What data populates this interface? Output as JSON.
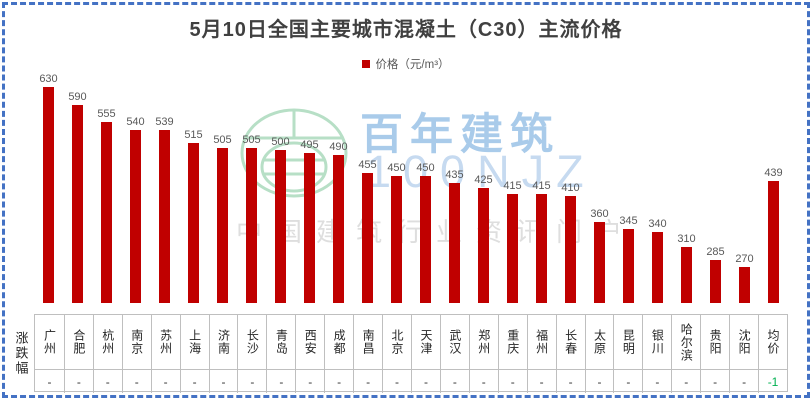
{
  "title": "5月10日全国主要城市混凝土（C30）主流价格",
  "legend": {
    "label": "价格（元/m³）",
    "marker_color": "#C00000"
  },
  "row_label": "涨跌幅",
  "watermark": {
    "brand": "百年建筑",
    "code": "100NJZ",
    "tagline": "中国建筑行业资讯门户"
  },
  "colors": {
    "bar": "#C00000",
    "frame": "#4472C4",
    "value_label": "#595959",
    "table_border": "#BFBFBF",
    "change_highlight": "#00B050"
  },
  "chart_data": {
    "type": "bar",
    "title": "5月10日全国主要城市混凝土（C30）主流价格",
    "categories": [
      "广州",
      "合肥",
      "杭州",
      "南京",
      "苏州",
      "上海",
      "济南",
      "长沙",
      "青岛",
      "西安",
      "成都",
      "南昌",
      "北京",
      "天津",
      "武汉",
      "郑州",
      "重庆",
      "福州",
      "长春",
      "太原",
      "昆明",
      "银川",
      "哈尔滨",
      "贵阳",
      "沈阳",
      "均价"
    ],
    "series": [
      {
        "name": "价格（元/m³）",
        "values": [
          630,
          590,
          555,
          540,
          539,
          515,
          505,
          505,
          500,
          495,
          490,
          455,
          450,
          450,
          435,
          425,
          415,
          415,
          410,
          360,
          345,
          340,
          310,
          285,
          270,
          439
        ]
      },
      {
        "name": "涨跌幅",
        "values": [
          "-",
          "-",
          "-",
          "-",
          "-",
          "-",
          "-",
          "-",
          "-",
          "-",
          "-",
          "-",
          "-",
          "-",
          "-",
          "-",
          "-",
          "-",
          "-",
          "-",
          "-",
          "-",
          "-",
          "-",
          "-",
          "-1"
        ]
      }
    ],
    "xlabel": "",
    "ylabel": "价格（元/m³）",
    "ylim": [
      200,
      650
    ],
    "grid": false,
    "legend_position": "top-center",
    "data_labels": true
  }
}
